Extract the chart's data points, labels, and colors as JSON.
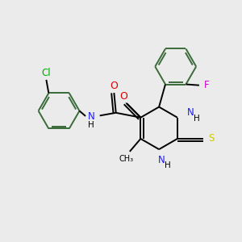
{
  "background_color": "#ebebeb",
  "atom_colors": {
    "C": "#000000",
    "N": "#1a1aff",
    "O": "#dd0000",
    "S": "#cccc00",
    "Cl": "#00aa00",
    "F": "#cc00cc",
    "H": "#000000"
  },
  "bond_color": "#3a6b3a",
  "bond_color2": "#000000",
  "bond_width": 1.4,
  "font_size": 8.5
}
